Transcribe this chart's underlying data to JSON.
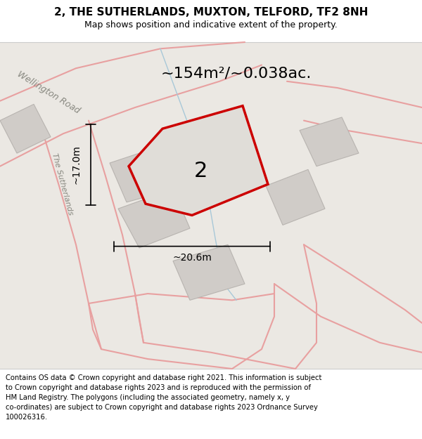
{
  "title": "2, THE SUTHERLANDS, MUXTON, TELFORD, TF2 8NH",
  "subtitle": "Map shows position and indicative extent of the property.",
  "footer_lines": [
    "Contains OS data © Crown copyright and database right 2021. This information is subject",
    "to Crown copyright and database rights 2023 and is reproduced with the permission of",
    "HM Land Registry. The polygons (including the associated geometry, namely x, y",
    "co-ordinates) are subject to Crown copyright and database rights 2023 Ordnance Survey",
    "100026316."
  ],
  "area_label": "~154m²/~0.038ac.",
  "plot_label": "2",
  "dim_vertical": "~17.0m",
  "dim_horizontal": "~20.6m",
  "map_bg": "#ebe8e3",
  "plot_fill": "#e0ddd8",
  "plot_edge": "#cc0000",
  "building_fill": "#d0ccc8",
  "building_edge": "#b8b4b0",
  "road_color": "#e8a0a0",
  "water_color": "#a8c8d8",
  "title_fontsize": 11,
  "subtitle_fontsize": 9,
  "footer_fontsize": 7.2,
  "street_label_color": "#888880"
}
